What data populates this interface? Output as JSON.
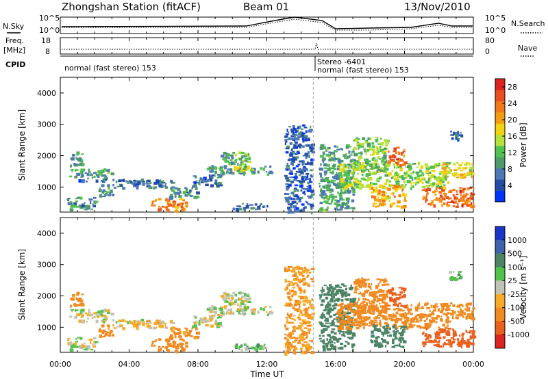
{
  "header": {
    "title": "Zhongshan Station (fitACF)",
    "beam": "Beam 01",
    "date": "13/Nov/2010"
  },
  "strip_labels": {
    "nsky": "N.Sky",
    "nsky_ticks": [
      "10^5",
      "10^0"
    ],
    "nsearch": "N.Search",
    "nsearch_ticks": [
      "10^5",
      "10^0"
    ],
    "freq_line1": "Freq.",
    "freq_line2": "[MHz]",
    "freq_ticks": [
      "18",
      "8"
    ],
    "nave": "Nave",
    "nave_ticks": [
      "80",
      "0"
    ],
    "cpid": "CPID",
    "cpid_segments": [
      "normal (fast stereo) 153",
      "Stereo -6401",
      "normal (fast stereo) 153"
    ]
  },
  "colors": {
    "power": [
      "#0033ff",
      "#244ea6",
      "#4e78b4",
      "#50996c",
      "#4fc24f",
      "#b6e03a",
      "#f3d40f",
      "#f39d11",
      "#f07818",
      "#e94d20",
      "#dd2222"
    ],
    "velocity": [
      "#1a35c7",
      "#3f62ad",
      "#4d8466",
      "#52c24b",
      "#c2c2b4",
      "#f7ab28",
      "#f08b22",
      "#e9601f",
      "#dd2222"
    ]
  },
  "chart_data": [
    {
      "type": "heatmap",
      "name": "power",
      "ylabel": "Slant Range [km]",
      "ylim": [
        200,
        4500
      ],
      "yticks": [
        "1000",
        "2000",
        "3000",
        "4000"
      ],
      "xlim_hours": [
        0,
        24
      ],
      "colorbar_label": "Power [dB]",
      "colorbar_ticks": [
        "4",
        "8",
        "12",
        "16",
        "20",
        "24",
        "28"
      ],
      "colorbar_range": [
        0,
        30
      ],
      "regions": [
        {
          "t": [
            0.5,
            3.0
          ],
          "r": [
            1300,
            1600
          ],
          "v": 10
        },
        {
          "t": [
            1.0,
            4.8
          ],
          "r": [
            1180,
            1280
          ],
          "v": 6
        },
        {
          "t": [
            0.3,
            2.0
          ],
          "r": [
            300,
            700
          ],
          "v": 9
        },
        {
          "t": [
            0.5,
            1.3
          ],
          "r": [
            1650,
            2150
          ],
          "v": 10
        },
        {
          "t": [
            2.2,
            3.0
          ],
          "r": [
            700,
            1100
          ],
          "v": 9
        },
        {
          "t": [
            3.0,
            6.5
          ],
          "r": [
            1000,
            1250
          ],
          "v": 6
        },
        {
          "t": [
            5.2,
            7.3
          ],
          "r": [
            250,
            650
          ],
          "v": 22
        },
        {
          "t": [
            6.3,
            8.0
          ],
          "r": [
            650,
            1000
          ],
          "v": 8
        },
        {
          "t": [
            7.5,
            9.3
          ],
          "r": [
            1050,
            1400
          ],
          "v": 6
        },
        {
          "t": [
            8.5,
            12.2
          ],
          "r": [
            1400,
            1700
          ],
          "v": 9
        },
        {
          "t": [
            9.3,
            11.0
          ],
          "r": [
            1700,
            2150
          ],
          "v": 11
        },
        {
          "t": [
            10.0,
            11.2
          ],
          "r": [
            1500,
            1700
          ],
          "v": 15
        },
        {
          "t": [
            10.0,
            12.0
          ],
          "r": [
            300,
            500
          ],
          "v": 6
        },
        {
          "t": [
            13.0,
            14.6
          ],
          "r": [
            200,
            3000
          ],
          "v": 5
        },
        {
          "t": [
            15.0,
            17.0
          ],
          "r": [
            300,
            2400
          ],
          "v": 10
        },
        {
          "t": [
            16.0,
            22.5
          ],
          "r": [
            1000,
            1800
          ],
          "v": 14
        },
        {
          "t": [
            17.0,
            19.0
          ],
          "r": [
            1500,
            2600
          ],
          "v": 13
        },
        {
          "t": [
            18.0,
            20.0
          ],
          "r": [
            400,
            1100
          ],
          "v": 20
        },
        {
          "t": [
            19.0,
            20.0
          ],
          "r": [
            1700,
            2300
          ],
          "v": 24
        },
        {
          "t": [
            21.0,
            24.0
          ],
          "r": [
            400,
            1000
          ],
          "v": 24
        },
        {
          "t": [
            22.0,
            24.0
          ],
          "r": [
            1300,
            1800
          ],
          "v": 17
        },
        {
          "t": [
            22.5,
            23.3
          ],
          "r": [
            2500,
            2800
          ],
          "v": 5
        }
      ]
    },
    {
      "type": "heatmap",
      "name": "velocity",
      "ylabel": "Slant Range [km]",
      "ylim": [
        200,
        4500
      ],
      "yticks": [
        "1000",
        "2000",
        "3000",
        "4000"
      ],
      "xlabel": "Time UT",
      "xticks": [
        "00:00",
        "04:00",
        "08:00",
        "12:00",
        "16:00",
        "20:00",
        "00:00"
      ],
      "xlim_hours": [
        0,
        24
      ],
      "colorbar_label": "Velocity [m s⁻¹]",
      "colorbar_ticks": [
        "1000",
        "500",
        "100",
        "25",
        "-25",
        "-100",
        "-500",
        "-1000"
      ],
      "regions": [
        {
          "t": [
            0.5,
            3.0
          ],
          "r": [
            1300,
            1600
          ],
          "v": 0
        },
        {
          "t": [
            1.0,
            4.8
          ],
          "r": [
            1180,
            1280
          ],
          "v": 0
        },
        {
          "t": [
            0.3,
            2.0
          ],
          "r": [
            300,
            700
          ],
          "v": 3
        },
        {
          "t": [
            0.5,
            1.3
          ],
          "r": [
            1650,
            2150
          ],
          "v": -150
        },
        {
          "t": [
            2.2,
            3.0
          ],
          "r": [
            700,
            1100
          ],
          "v": -150
        },
        {
          "t": [
            3.0,
            6.5
          ],
          "r": [
            1000,
            1250
          ],
          "v": -60
        },
        {
          "t": [
            5.2,
            7.3
          ],
          "r": [
            250,
            650
          ],
          "v": -300
        },
        {
          "t": [
            6.3,
            8.0
          ],
          "r": [
            650,
            1000
          ],
          "v": -150
        },
        {
          "t": [
            7.5,
            9.3
          ],
          "r": [
            1050,
            1400
          ],
          "v": 0
        },
        {
          "t": [
            8.5,
            12.2
          ],
          "r": [
            1400,
            1700
          ],
          "v": 0
        },
        {
          "t": [
            9.3,
            11.0
          ],
          "r": [
            1700,
            2150
          ],
          "v": 0
        },
        {
          "t": [
            10.0,
            12.0
          ],
          "r": [
            300,
            500
          ],
          "v": 60
        },
        {
          "t": [
            13.0,
            14.6
          ],
          "r": [
            200,
            3000
          ],
          "v": -100
        },
        {
          "t": [
            15.0,
            17.0
          ],
          "r": [
            300,
            2400
          ],
          "v": 200
        },
        {
          "t": [
            16.0,
            22.5
          ],
          "r": [
            1000,
            1800
          ],
          "v": -300
        },
        {
          "t": [
            17.0,
            19.0
          ],
          "r": [
            1500,
            2600
          ],
          "v": -400
        },
        {
          "t": [
            18.0,
            20.0
          ],
          "r": [
            400,
            1100
          ],
          "v": 300
        },
        {
          "t": [
            19.0,
            20.0
          ],
          "r": [
            1700,
            2300
          ],
          "v": -600
        },
        {
          "t": [
            21.0,
            24.0
          ],
          "r": [
            400,
            1000
          ],
          "v": -600
        },
        {
          "t": [
            22.0,
            24.0
          ],
          "r": [
            1300,
            1800
          ],
          "v": -300
        },
        {
          "t": [
            22.5,
            23.3
          ],
          "r": [
            2500,
            2800
          ],
          "v": 60
        }
      ]
    }
  ]
}
